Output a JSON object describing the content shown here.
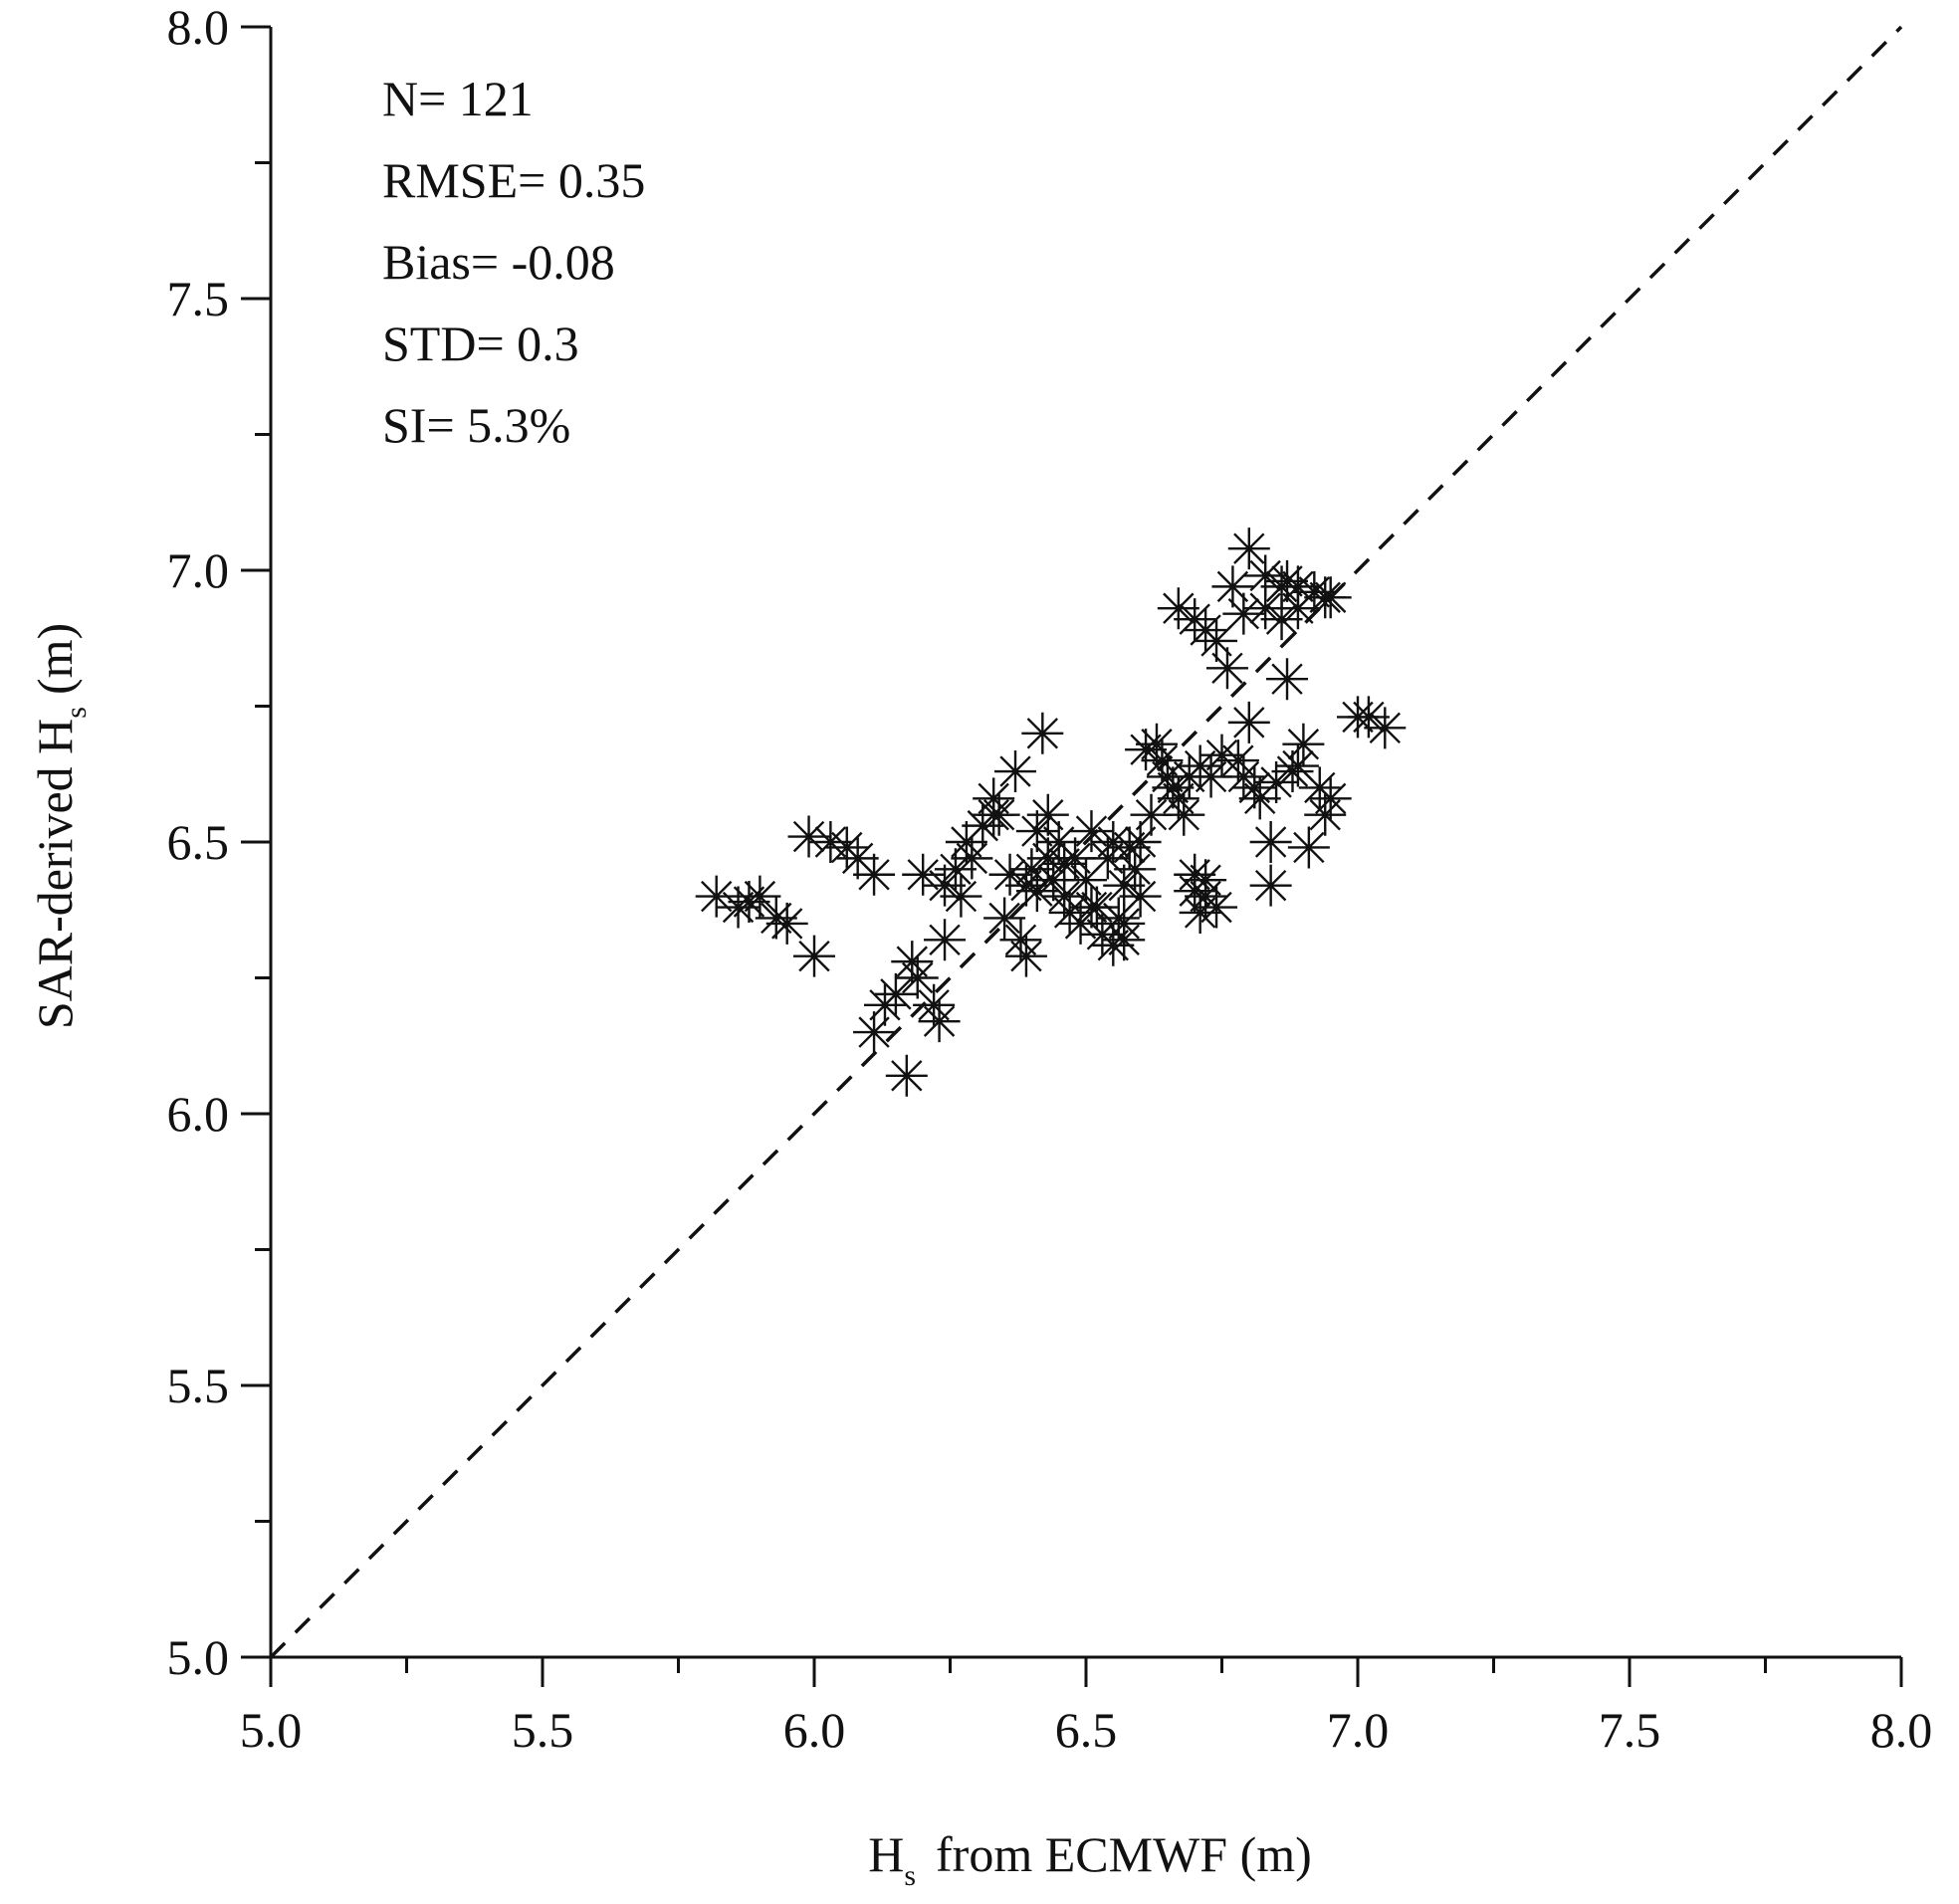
{
  "chart_data": {
    "type": "scatter",
    "title": "",
    "xlabel": {
      "main": "H",
      "sub": "s",
      "rest": "from ECMWF (m)"
    },
    "ylabel": {
      "main": "SAR-derived H",
      "sub": "s",
      "rest": "(m)"
    },
    "xlim": [
      5.0,
      8.0
    ],
    "ylim": [
      5.0,
      8.0
    ],
    "major_ticks": [
      5.0,
      5.5,
      6.0,
      6.5,
      7.0,
      7.5,
      8.0
    ],
    "minor_tick_step": 0.25,
    "x_tick_labels": [
      "5.0",
      "5.5",
      "6.0",
      "6.5",
      "7.0",
      "7.5",
      "8.0"
    ],
    "y_tick_labels": [
      "5.0",
      "5.5",
      "6.0",
      "6.5",
      "7.0",
      "7.5",
      "8.0"
    ],
    "reference_line": {
      "style": "dashed",
      "from": [
        5.0,
        5.0
      ],
      "to": [
        8.0,
        8.0
      ]
    },
    "marker": "asterisk",
    "stats": [
      "N= 121",
      "RMSE= 0.35",
      "Bias= -0.08",
      "STD= 0.3",
      "SI= 5.3%"
    ],
    "x": [
      5.82,
      5.86,
      5.88,
      5.9,
      5.93,
      5.95,
      6.0,
      5.99,
      6.03,
      6.06,
      6.08,
      6.11,
      6.11,
      6.13,
      6.15,
      6.17,
      6.18,
      6.19,
      6.2,
      6.22,
      6.23,
      6.24,
      6.24,
      6.26,
      6.27,
      6.28,
      6.29,
      6.31,
      6.33,
      6.34,
      6.35,
      6.36,
      6.37,
      6.38,
      6.39,
      6.4,
      6.41,
      6.41,
      6.42,
      6.43,
      6.43,
      6.44,
      6.45,
      6.46,
      6.47,
      6.48,
      6.49,
      6.5,
      6.51,
      6.52,
      6.53,
      6.54,
      6.55,
      6.55,
      6.56,
      6.57,
      6.57,
      6.58,
      6.59,
      6.6,
      6.61,
      6.62,
      6.63,
      6.64,
      6.65,
      6.66,
      6.67,
      6.68,
      6.69,
      6.7,
      6.7,
      6.71,
      6.71,
      6.72,
      6.72,
      6.73,
      6.74,
      6.75,
      6.76,
      6.77,
      6.78,
      6.79,
      6.8,
      6.8,
      6.81,
      6.82,
      6.83,
      6.84,
      6.84,
      6.85,
      6.86,
      6.87,
      6.87,
      6.88,
      6.89,
      6.89,
      6.9,
      6.91,
      6.92,
      6.93,
      6.94,
      6.95,
      6.95,
      6.67,
      6.7,
      6.72,
      6.74,
      6.79,
      6.83,
      6.86,
      6.89,
      6.94,
      7.0,
      7.02,
      7.05,
      6.46,
      6.51,
      6.57,
      6.39,
      6.33,
      6.6
    ],
    "y": [
      6.4,
      6.38,
      6.39,
      6.4,
      6.36,
      6.35,
      6.29,
      6.51,
      6.5,
      6.49,
      6.47,
      6.44,
      6.15,
      6.2,
      6.22,
      6.07,
      6.28,
      6.25,
      6.44,
      6.2,
      6.17,
      6.32,
      6.42,
      6.45,
      6.4,
      6.5,
      6.47,
      6.53,
      6.58,
      6.55,
      6.36,
      6.44,
      6.63,
      6.32,
      6.29,
      6.45,
      6.52,
      6.41,
      6.7,
      6.47,
      6.55,
      6.43,
      6.5,
      6.4,
      6.37,
      6.47,
      6.35,
      6.43,
      6.52,
      6.38,
      6.33,
      6.47,
      6.5,
      6.31,
      6.36,
      6.42,
      6.32,
      6.49,
      6.45,
      6.4,
      6.67,
      6.55,
      6.68,
      6.65,
      6.62,
      6.6,
      6.58,
      6.55,
      6.62,
      6.41,
      6.44,
      6.37,
      6.64,
      6.4,
      6.43,
      6.62,
      6.38,
      6.66,
      6.82,
      6.97,
      6.65,
      6.62,
      7.04,
      6.72,
      6.6,
      6.58,
      6.99,
      6.5,
      6.42,
      6.61,
      6.97,
      6.98,
      6.8,
      6.63,
      6.97,
      6.64,
      6.68,
      6.49,
      6.96,
      6.6,
      6.55,
      6.95,
      6.58,
      6.93,
      6.91,
      6.89,
      6.87,
      6.92,
      6.93,
      6.91,
      6.93,
      6.95,
      6.73,
      6.73,
      6.71,
      6.46,
      6.38,
      6.35,
      6.42,
      6.55,
      6.5
    ]
  }
}
